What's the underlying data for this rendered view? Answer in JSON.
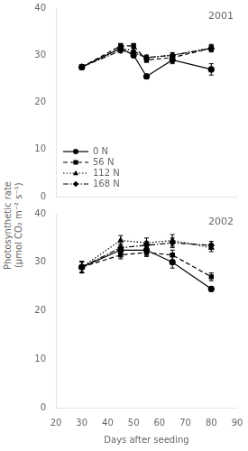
{
  "chart_data": [
    {
      "type": "line",
      "x": [
        30,
        45,
        50,
        55,
        65,
        80
      ],
      "series": [
        {
          "name": "0 N",
          "color": "black",
          "marker": "circle",
          "line_style": "solid",
          "values": [
            27.5,
            31.5,
            30.0,
            25.5,
            29.0,
            27.0
          ],
          "yerr": [
            0.5,
            0.6,
            0.5,
            0.5,
            0.8,
            1.2
          ]
        },
        {
          "name": "56 N",
          "color": "black",
          "marker": "square",
          "line_style": "dashed",
          "values": [
            27.5,
            32.0,
            32.0,
            29.0,
            29.5,
            31.5
          ],
          "yerr": [
            0.5,
            0.5,
            0.5,
            0.5,
            0.5,
            0.8
          ]
        },
        {
          "name": "112 N",
          "color": "black",
          "marker": "triangle",
          "line_style": "dotted",
          "values": [
            27.5,
            31.5,
            31.0,
            29.5,
            30.0,
            31.5
          ],
          "yerr": [
            0.5,
            0.5,
            0.5,
            0.5,
            0.5,
            0.6
          ]
        },
        {
          "name": "168 N",
          "color": "black",
          "marker": "diamond",
          "line_style": "dashdot",
          "values": [
            27.5,
            31.0,
            30.5,
            29.5,
            30.0,
            31.5
          ],
          "yerr": [
            0.5,
            0.5,
            0.5,
            0.5,
            0.5,
            0.6
          ]
        }
      ],
      "xlim": [
        20,
        90
      ],
      "xticks": [
        20,
        30,
        40,
        50,
        60,
        70,
        80,
        90
      ],
      "ylim": [
        0,
        40
      ],
      "yticks": [
        0,
        10,
        20,
        30,
        40
      ],
      "ylabel": [
        "Photosynthetic rate",
        "(μmol CO₂ m⁻² s⁻¹)"
      ],
      "annotation": "2001",
      "legend": "lower left",
      "grid": false,
      "tick_labels": "y"
    },
    {
      "type": "line",
      "x": [
        30,
        45,
        55,
        65,
        80
      ],
      "series": [
        {
          "name": "0 N",
          "color": "black",
          "marker": "circle",
          "line_style": "solid",
          "values": [
            29.0,
            32.5,
            32.5,
            30.0,
            24.5
          ],
          "yerr": [
            1.2,
            0.8,
            1.2,
            1.2,
            0.5
          ]
        },
        {
          "name": "56 N",
          "color": "black",
          "marker": "square",
          "line_style": "dashed",
          "values": [
            29.0,
            31.5,
            32.0,
            31.5,
            27.0
          ],
          "yerr": [
            1.2,
            0.8,
            0.8,
            1.0,
            0.8
          ]
        },
        {
          "name": "112 N",
          "color": "black",
          "marker": "triangle",
          "line_style": "dotted",
          "values": [
            29.0,
            34.5,
            34.0,
            34.5,
            33.0
          ],
          "yerr": [
            1.2,
            1.0,
            1.0,
            1.2,
            0.8
          ]
        },
        {
          "name": "168 N",
          "color": "black",
          "marker": "diamond",
          "line_style": "dashdot",
          "values": [
            29.0,
            33.0,
            33.5,
            34.0,
            33.5
          ],
          "yerr": [
            1.0,
            0.8,
            0.8,
            1.0,
            0.8
          ]
        }
      ],
      "xlim": [
        20,
        90
      ],
      "xticks": [
        20,
        30,
        40,
        50,
        60,
        70,
        80,
        90
      ],
      "ylim": [
        0,
        40
      ],
      "yticks": [
        0,
        10,
        20,
        30,
        40
      ],
      "xlabel": "Days after seeding",
      "annotation": "2002",
      "grid": false
    }
  ]
}
